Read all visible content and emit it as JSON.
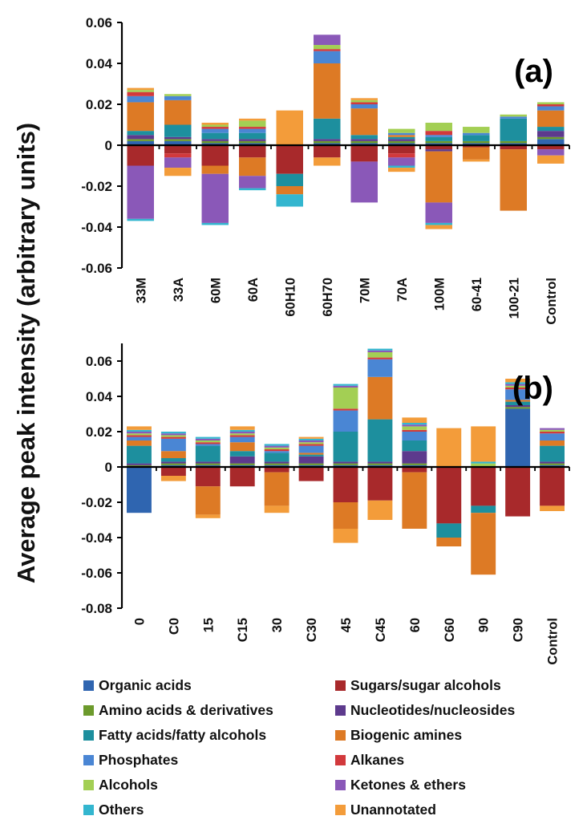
{
  "figure": {
    "ylabel": "Average peak intensity (arbitrary units)"
  },
  "legend_items": [
    {
      "name": "Organic acids",
      "color": "#2f65b0"
    },
    {
      "name": "Sugars/sugar alcohols",
      "color": "#a8292b"
    },
    {
      "name": "Amino acids & derivatives",
      "color": "#6c9a2c"
    },
    {
      "name": "Nucleotides/nucleosides",
      "color": "#5d3a8d"
    },
    {
      "name": "Fatty acids/fatty alcohols",
      "color": "#1d8f9e"
    },
    {
      "name": "Biogenic amines",
      "color": "#dd7a25"
    },
    {
      "name": "Phosphates",
      "color": "#4a86d4"
    },
    {
      "name": "Alkanes",
      "color": "#d2393c"
    },
    {
      "name": "Alcohols",
      "color": "#a3cf54"
    },
    {
      "name": "Ketones & ethers",
      "color": "#8a58b8"
    },
    {
      "name": "Others",
      "color": "#33b6cf"
    },
    {
      "name": "Unannotated",
      "color": "#f39c3a"
    }
  ],
  "chart_data": [
    {
      "type": "bar",
      "stacked": true,
      "panel_label": "(a)",
      "ylim": [
        -0.06,
        0.06
      ],
      "yticks": [
        "-0.06",
        "-0.04",
        "-0.02",
        "0",
        "0.02",
        "0.04",
        "0.06"
      ],
      "categories": [
        "33M",
        "33A",
        "60M",
        "60A",
        "60H10",
        "60H70",
        "70M",
        "70A",
        "100M",
        "60-41",
        "100-21",
        "Control"
      ],
      "series": [
        {
          "name": "Organic acids",
          "values": [
            0.002,
            0.002,
            0.001,
            0.001,
            0,
            0.001,
            0.001,
            0.001,
            0.001,
            0.001,
            0.001,
            0.003
          ]
        },
        {
          "name": "Sugars/sugar alcohols",
          "values": [
            -0.01,
            -0.004,
            -0.01,
            -0.006,
            -0.014,
            -0.006,
            -0.008,
            -0.004,
            -0.002,
            -0.001,
            -0.002,
            -0.002
          ]
        },
        {
          "name": "Amino acids & derivatives",
          "values": [
            0.001,
            0.001,
            0.001,
            0.001,
            0,
            0.001,
            0.001,
            0.001,
            0.001,
            0.001,
            0.001,
            0.001
          ]
        },
        {
          "name": "Nucleotides/nucleosides",
          "values": [
            0.002,
            0.001,
            0.001,
            0.001,
            0,
            0.001,
            0.001,
            0.001,
            -0.001,
            0,
            0,
            0.003
          ]
        },
        {
          "name": "Fatty acids/fatty alcohols",
          "values": [
            0.002,
            0.006,
            0.003,
            0.003,
            -0.006,
            0.01,
            0.002,
            0.001,
            0.002,
            0.003,
            0.011,
            0.002
          ]
        },
        {
          "name": "Biogenic amines",
          "values": [
            0.014,
            0.012,
            -0.004,
            -0.009,
            -0.004,
            0.027,
            0.013,
            0.001,
            -0.025,
            -0.006,
            -0.03,
            0.008
          ]
        },
        {
          "name": "Phosphates",
          "values": [
            0.003,
            0.002,
            0.002,
            0.002,
            0,
            0.006,
            0.002,
            0.001,
            0.001,
            0.001,
            0.001,
            0.002
          ]
        },
        {
          "name": "Alkanes",
          "values": [
            0.002,
            -0.002,
            0.001,
            0.001,
            0,
            0.001,
            0.001,
            -0.002,
            0.002,
            0,
            0,
            0.001
          ]
        },
        {
          "name": "Alcohols",
          "values": [
            0.001,
            0.001,
            0.001,
            0.003,
            0,
            0.002,
            0.001,
            0.002,
            0.004,
            0.003,
            0.001,
            0.001
          ]
        },
        {
          "name": "Ketones & ethers",
          "values": [
            -0.026,
            -0.005,
            -0.024,
            -0.006,
            0,
            0.005,
            -0.02,
            -0.004,
            -0.01,
            0,
            0,
            -0.003
          ]
        },
        {
          "name": "Others",
          "values": [
            -0.001,
            0,
            -0.001,
            -0.001,
            -0.006,
            0,
            0,
            -0.001,
            -0.001,
            0,
            0,
            0
          ]
        },
        {
          "name": "Unannotated",
          "values": [
            0.001,
            -0.004,
            0.001,
            0.001,
            0.017,
            -0.004,
            0.001,
            -0.002,
            -0.002,
            -0.001,
            0,
            -0.004
          ]
        }
      ]
    },
    {
      "type": "bar",
      "stacked": true,
      "panel_label": "(b)",
      "ylim": [
        -0.08,
        0.07
      ],
      "yticks": [
        "-0.08",
        "-0.06",
        "-0.04",
        "-0.02",
        "0",
        "0.02",
        "0.04",
        "0.06"
      ],
      "categories": [
        "0",
        "C0",
        "15",
        "C15",
        "30",
        "C30",
        "45",
        "C45",
        "60",
        "C60",
        "90",
        "C90",
        "Control"
      ],
      "series": [
        {
          "name": "Organic acids",
          "values": [
            -0.026,
            0.001,
            0.001,
            0.001,
            0.001,
            0.001,
            0.001,
            0.001,
            0.001,
            0,
            0,
            0.033,
            0.001
          ]
        },
        {
          "name": "Sugars/sugar alcohols",
          "values": [
            0,
            -0.005,
            -0.011,
            -0.011,
            -0.003,
            -0.008,
            -0.02,
            -0.019,
            -0.003,
            -0.032,
            -0.022,
            -0.028,
            -0.022
          ]
        },
        {
          "name": "Amino acids & derivatives",
          "values": [
            0.001,
            0.001,
            0.001,
            0.001,
            0.001,
            0.001,
            0.001,
            0.001,
            0.001,
            0,
            0,
            0.001,
            0.001
          ]
        },
        {
          "name": "Nucleotides/nucleosides",
          "values": [
            0.001,
            0.001,
            0.001,
            0.004,
            0.001,
            0.004,
            0.001,
            0.001,
            0.007,
            0,
            0,
            0.001,
            0.001
          ]
        },
        {
          "name": "Fatty acids/fatty alcohols",
          "values": [
            0.01,
            0.002,
            0.009,
            0.003,
            0.005,
            0.001,
            0.017,
            0.024,
            0.006,
            -0.008,
            -0.004,
            0.002,
            0.009
          ]
        },
        {
          "name": "Biogenic amines",
          "values": [
            0.003,
            0.004,
            -0.016,
            0.005,
            -0.019,
            0.001,
            -0.015,
            0.024,
            -0.032,
            -0.005,
            -0.035,
            0.001,
            0.003
          ]
        },
        {
          "name": "Phosphates",
          "values": [
            0.002,
            0.007,
            0.001,
            0.003,
            0.001,
            0.004,
            0.012,
            0.01,
            0.005,
            0,
            0,
            0.006,
            0.004
          ]
        },
        {
          "name": "Alkanes",
          "values": [
            0.001,
            0.001,
            0.001,
            0.001,
            0.001,
            0.001,
            0.001,
            0.001,
            0.001,
            0,
            0,
            0.001,
            0.001
          ]
        },
        {
          "name": "Alcohols",
          "values": [
            0.001,
            0.001,
            0.001,
            0.001,
            0.001,
            0.001,
            0.012,
            0.003,
            0.002,
            0,
            0.002,
            0.001,
            0.001
          ]
        },
        {
          "name": "Ketones & ethers",
          "values": [
            0.001,
            0.001,
            0.001,
            0.001,
            0.001,
            0.001,
            0.001,
            0.001,
            0.001,
            0,
            0,
            0.001,
            0.001
          ]
        },
        {
          "name": "Others",
          "values": [
            0.001,
            0.001,
            0.001,
            0.001,
            0.001,
            0.001,
            0.001,
            0.001,
            0.001,
            0,
            0.001,
            0.001,
            0
          ]
        },
        {
          "name": "Unannotated",
          "values": [
            0.002,
            -0.003,
            -0.002,
            0.002,
            -0.004,
            0.001,
            -0.008,
            -0.011,
            0.003,
            0.022,
            0.02,
            0.002,
            -0.003
          ]
        }
      ]
    }
  ]
}
